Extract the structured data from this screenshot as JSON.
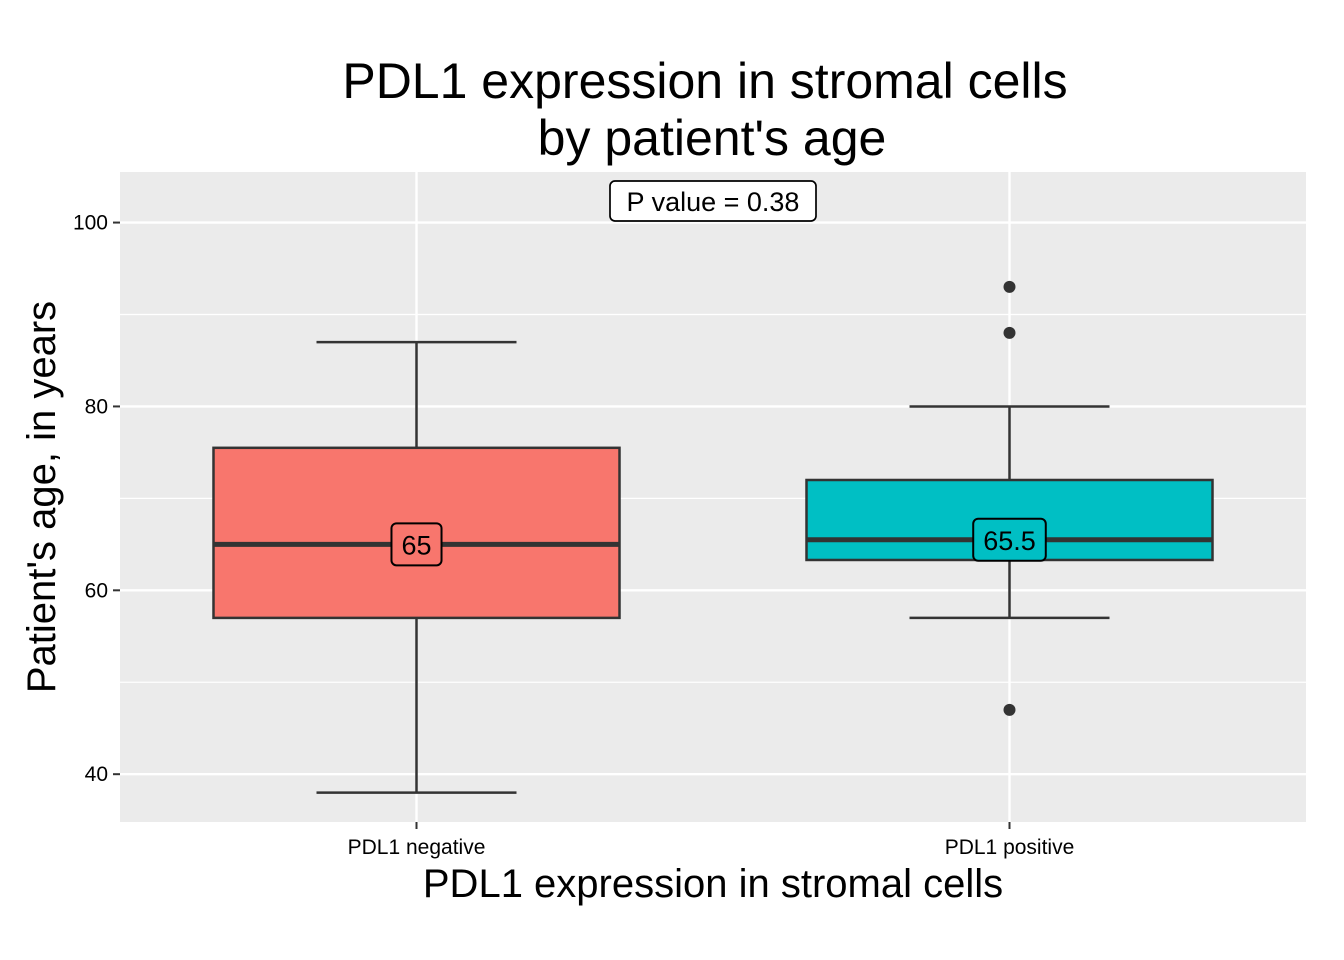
{
  "chart_data": {
    "type": "box",
    "title": [
      "PDL1 expression in stromal cells",
      "by patient's age"
    ],
    "xlabel": "PDL1 expression in stromal cells",
    "ylabel": "Patient's age, in years",
    "ylim": [
      34.8,
      105.5
    ],
    "yticks": [
      40,
      60,
      80,
      100
    ],
    "grid": true,
    "categories": [
      "PDL1 negative",
      "PDL1 positive"
    ],
    "boxes": [
      {
        "category": "PDL1 negative",
        "min": 38,
        "q1": 57,
        "median": 65,
        "q3": 75.5,
        "max": 87,
        "outliers": [],
        "median_label": "65",
        "fill": "#F8766D"
      },
      {
        "category": "PDL1 positive",
        "min": 57,
        "q1": 63.3,
        "median": 65.5,
        "q3": 72,
        "max": 80,
        "outliers": [
          93,
          88,
          47
        ],
        "median_label": "65.5",
        "fill": "#00BFC4"
      }
    ],
    "annotation": "P value = 0.38"
  }
}
